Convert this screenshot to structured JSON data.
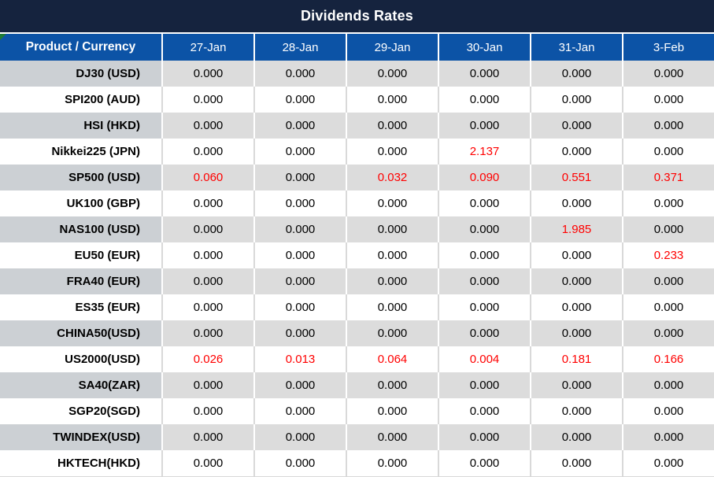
{
  "title": "Dividends Rates",
  "colors": {
    "title_bg": "#15233E",
    "header_bg": "#0C53A6",
    "shaded_label_bg": "#CCD0D4",
    "shaded_value_bg": "#DCDCDC",
    "highlight_red": "#FF0000",
    "corner_flag_green": "#1E7B34"
  },
  "table": {
    "header": {
      "product_label": "Product / Currency",
      "dates": [
        "27-Jan",
        "28-Jan",
        "29-Jan",
        "30-Jan",
        "31-Jan",
        "3-Feb"
      ]
    },
    "rows": [
      {
        "product": "DJ30 (USD)",
        "values": [
          "0.000",
          "0.000",
          "0.000",
          "0.000",
          "0.000",
          "0.000"
        ],
        "red_indices": []
      },
      {
        "product": "SPI200 (AUD)",
        "values": [
          "0.000",
          "0.000",
          "0.000",
          "0.000",
          "0.000",
          "0.000"
        ],
        "red_indices": []
      },
      {
        "product": "HSI (HKD)",
        "values": [
          "0.000",
          "0.000",
          "0.000",
          "0.000",
          "0.000",
          "0.000"
        ],
        "red_indices": []
      },
      {
        "product": "Nikkei225 (JPN)",
        "values": [
          "0.000",
          "0.000",
          "0.000",
          "2.137",
          "0.000",
          "0.000"
        ],
        "red_indices": [
          3
        ]
      },
      {
        "product": "SP500 (USD)",
        "values": [
          "0.060",
          "0.000",
          "0.032",
          "0.090",
          "0.551",
          "0.371"
        ],
        "red_indices": [
          0,
          2,
          3,
          4,
          5
        ]
      },
      {
        "product": "UK100 (GBP)",
        "values": [
          "0.000",
          "0.000",
          "0.000",
          "0.000",
          "0.000",
          "0.000"
        ],
        "red_indices": []
      },
      {
        "product": "NAS100 (USD)",
        "values": [
          "0.000",
          "0.000",
          "0.000",
          "0.000",
          "1.985",
          "0.000"
        ],
        "red_indices": [
          4
        ]
      },
      {
        "product": "EU50 (EUR)",
        "values": [
          "0.000",
          "0.000",
          "0.000",
          "0.000",
          "0.000",
          "0.233"
        ],
        "red_indices": [
          5
        ]
      },
      {
        "product": "FRA40 (EUR)",
        "values": [
          "0.000",
          "0.000",
          "0.000",
          "0.000",
          "0.000",
          "0.000"
        ],
        "red_indices": []
      },
      {
        "product": "ES35 (EUR)",
        "values": [
          "0.000",
          "0.000",
          "0.000",
          "0.000",
          "0.000",
          "0.000"
        ],
        "red_indices": []
      },
      {
        "product": "CHINA50(USD)",
        "values": [
          "0.000",
          "0.000",
          "0.000",
          "0.000",
          "0.000",
          "0.000"
        ],
        "red_indices": []
      },
      {
        "product": "US2000(USD)",
        "values": [
          "0.026",
          "0.013",
          "0.064",
          "0.004",
          "0.181",
          "0.166"
        ],
        "red_indices": [
          0,
          1,
          2,
          3,
          4,
          5
        ]
      },
      {
        "product": "SA40(ZAR)",
        "values": [
          "0.000",
          "0.000",
          "0.000",
          "0.000",
          "0.000",
          "0.000"
        ],
        "red_indices": []
      },
      {
        "product": "SGP20(SGD)",
        "values": [
          "0.000",
          "0.000",
          "0.000",
          "0.000",
          "0.000",
          "0.000"
        ],
        "red_indices": []
      },
      {
        "product": "TWINDEX(USD)",
        "values": [
          "0.000",
          "0.000",
          "0.000",
          "0.000",
          "0.000",
          "0.000"
        ],
        "red_indices": []
      },
      {
        "product": "HKTECH(HKD)",
        "values": [
          "0.000",
          "0.000",
          "0.000",
          "0.000",
          "0.000",
          "0.000"
        ],
        "red_indices": []
      }
    ]
  }
}
